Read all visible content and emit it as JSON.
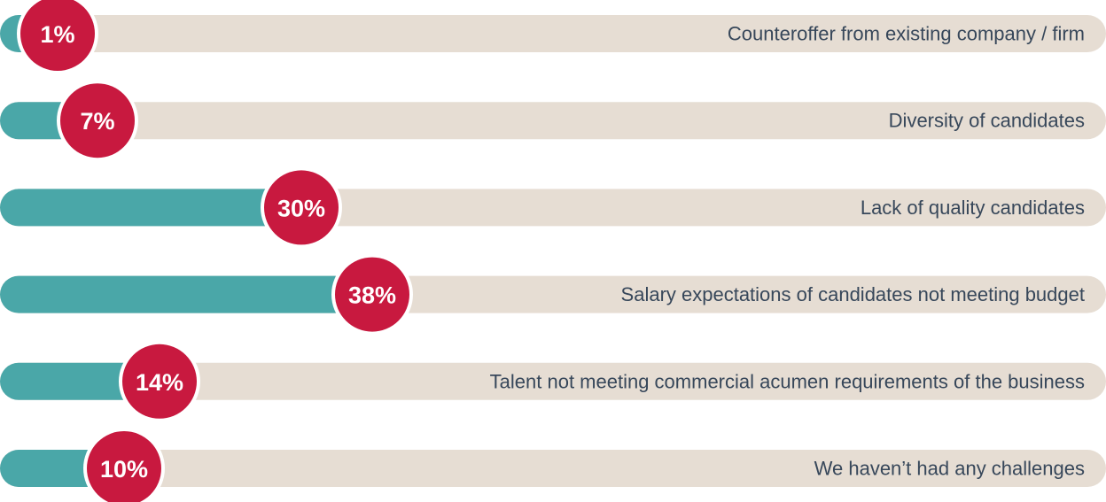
{
  "chart_data": {
    "type": "bar",
    "categories": [
      "Counteroffer from existing company / firm",
      "Diversity of candidates",
      "Lack of quality candidates",
      "Salary expectations of candidates not meeting budget",
      "Talent not meeting commercial acumen requirements of the business",
      "We haven’t had any challenges"
    ],
    "values": [
      1,
      7,
      30,
      38,
      14,
      10
    ],
    "value_labels": [
      "1%",
      "7%",
      "30%",
      "38%",
      "14%",
      "10%"
    ],
    "color": "#4aa7a8",
    "track_color": "#e6ddd3",
    "badge_color": "#c8193f"
  }
}
